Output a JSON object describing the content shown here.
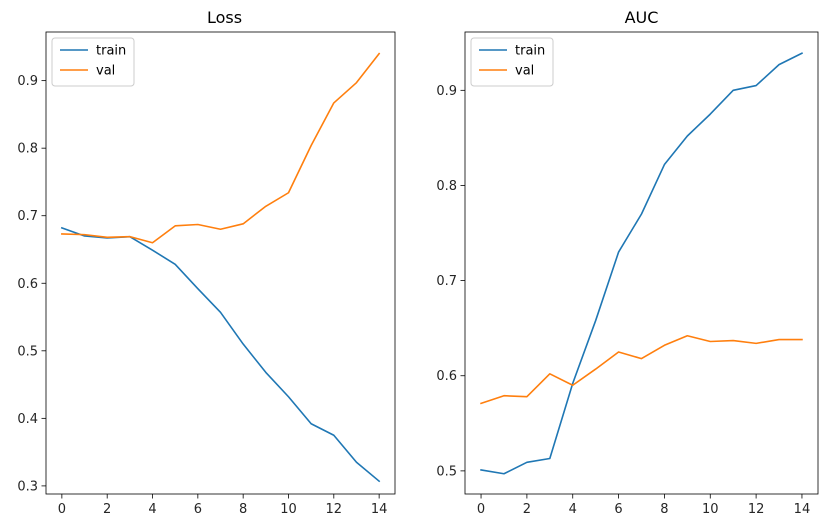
{
  "colors": {
    "train": "#1f77b4",
    "val": "#ff7f0e"
  },
  "chart_data": [
    {
      "type": "line",
      "title": "Loss",
      "xlabel": "",
      "ylabel": "",
      "x": [
        0,
        1,
        2,
        3,
        4,
        5,
        6,
        7,
        8,
        9,
        10,
        11,
        12,
        13,
        14
      ],
      "xticks": [
        0,
        2,
        4,
        6,
        8,
        10,
        12,
        14
      ],
      "xlim": [
        -0.7,
        14.7
      ],
      "yticks": [
        0.3,
        0.4,
        0.5,
        0.6,
        0.7,
        0.8,
        0.9
      ],
      "ylim": [
        0.288,
        0.972
      ],
      "grid": false,
      "legend": "top-left",
      "series": [
        {
          "name": "train",
          "values": [
            0.682,
            0.67,
            0.667,
            0.669,
            0.649,
            0.628,
            0.592,
            0.557,
            0.51,
            0.468,
            0.432,
            0.392,
            0.375,
            0.335,
            0.307
          ]
        },
        {
          "name": "val",
          "values": [
            0.673,
            0.672,
            0.668,
            0.669,
            0.66,
            0.685,
            0.687,
            0.68,
            0.688,
            0.714,
            0.734,
            0.804,
            0.867,
            0.897,
            0.94
          ]
        }
      ]
    },
    {
      "type": "line",
      "title": "AUC",
      "xlabel": "",
      "ylabel": "",
      "x": [
        0,
        1,
        2,
        3,
        4,
        5,
        6,
        7,
        8,
        9,
        10,
        11,
        12,
        13,
        14
      ],
      "xticks": [
        0,
        2,
        4,
        6,
        8,
        10,
        12,
        14
      ],
      "xlim": [
        -0.7,
        14.7
      ],
      "yticks": [
        0.5,
        0.6,
        0.7,
        0.8,
        0.9
      ],
      "ylim": [
        0.4757,
        0.9613
      ],
      "grid": false,
      "legend": "top-left",
      "series": [
        {
          "name": "train",
          "values": [
            0.501,
            0.497,
            0.509,
            0.513,
            0.592,
            0.658,
            0.73,
            0.77,
            0.822,
            0.852,
            0.875,
            0.9,
            0.905,
            0.927,
            0.939
          ]
        },
        {
          "name": "val",
          "values": [
            0.571,
            0.579,
            0.578,
            0.602,
            0.59,
            0.607,
            0.625,
            0.618,
            0.632,
            0.642,
            0.636,
            0.637,
            0.634,
            0.638,
            0.638
          ]
        }
      ]
    }
  ]
}
